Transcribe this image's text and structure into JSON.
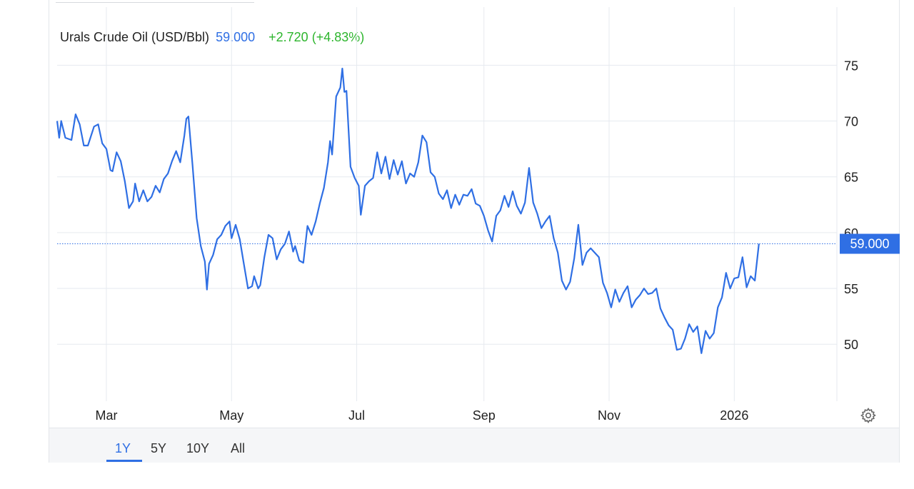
{
  "header": {
    "title": "Urals Crude Oil (USD/Bbl)",
    "price": "59.000",
    "change": "+2.720 (+4.83%)"
  },
  "colors": {
    "line": "#2f6fe4",
    "change_positive": "#2db52d",
    "grid": "#e6eaef"
  },
  "range_buttons": [
    {
      "label": "1Y",
      "active": true
    },
    {
      "label": "5Y",
      "active": false
    },
    {
      "label": "10Y",
      "active": false
    },
    {
      "label": "All",
      "active": false
    }
  ],
  "settings_icon": "gear-icon",
  "chart_data": {
    "type": "line",
    "title": "Urals Crude Oil (USD/Bbl)",
    "xlabel": "",
    "ylabel": "",
    "ylim": [
      44.9,
      80.2
    ],
    "yticks": [
      50,
      55,
      60,
      65,
      70,
      75
    ],
    "xticks": [
      {
        "label": "Mar",
        "date": "2025-03-01"
      },
      {
        "label": "May",
        "date": "2025-05-01"
      },
      {
        "label": "Jul",
        "date": "2025-07-01"
      },
      {
        "label": "Sep",
        "date": "2025-09-01"
      },
      {
        "label": "Nov",
        "date": "2025-11-01"
      },
      {
        "label": "2026",
        "date": "2026-01-01"
      }
    ],
    "x_range": [
      "2025-02-05",
      "2026-02-20"
    ],
    "grid": true,
    "current_value_label": "59.000",
    "current_value": 59.0,
    "series": [
      {
        "values": [
          [
            "2025-02-05",
            70.0
          ],
          [
            "2025-02-06",
            68.5
          ],
          [
            "2025-02-07",
            70.0
          ],
          [
            "2025-02-09",
            68.5
          ],
          [
            "2025-02-12",
            68.3
          ],
          [
            "2025-02-14",
            70.6
          ],
          [
            "2025-02-16",
            69.7
          ],
          [
            "2025-02-18",
            67.8
          ],
          [
            "2025-02-20",
            67.8
          ],
          [
            "2025-02-23",
            69.5
          ],
          [
            "2025-02-25",
            69.7
          ],
          [
            "2025-02-27",
            68.0
          ],
          [
            "2025-03-01",
            67.5
          ],
          [
            "2025-03-03",
            65.6
          ],
          [
            "2025-03-04",
            65.5
          ],
          [
            "2025-03-06",
            67.2
          ],
          [
            "2025-03-08",
            66.4
          ],
          [
            "2025-03-10",
            64.6
          ],
          [
            "2025-03-12",
            62.2
          ],
          [
            "2025-03-14",
            62.8
          ],
          [
            "2025-03-15",
            64.4
          ],
          [
            "2025-03-17",
            62.8
          ],
          [
            "2025-03-19",
            63.8
          ],
          [
            "2025-03-21",
            62.8
          ],
          [
            "2025-03-23",
            63.2
          ],
          [
            "2025-03-25",
            64.2
          ],
          [
            "2025-03-27",
            63.6
          ],
          [
            "2025-03-29",
            64.8
          ],
          [
            "2025-03-31",
            65.3
          ],
          [
            "2025-04-02",
            66.4
          ],
          [
            "2025-04-04",
            67.3
          ],
          [
            "2025-04-06",
            66.3
          ],
          [
            "2025-04-08",
            68.7
          ],
          [
            "2025-04-09",
            70.2
          ],
          [
            "2025-04-10",
            70.4
          ],
          [
            "2025-04-12",
            66.0
          ],
          [
            "2025-04-14",
            61.3
          ],
          [
            "2025-04-16",
            58.8
          ],
          [
            "2025-04-18",
            57.4
          ],
          [
            "2025-04-19",
            54.9
          ],
          [
            "2025-04-20",
            57.2
          ],
          [
            "2025-04-22",
            58.0
          ],
          [
            "2025-04-24",
            59.4
          ],
          [
            "2025-04-26",
            59.8
          ],
          [
            "2025-04-28",
            60.6
          ],
          [
            "2025-04-30",
            61.0
          ],
          [
            "2025-05-01",
            59.5
          ],
          [
            "2025-05-03",
            60.7
          ],
          [
            "2025-05-05",
            59.4
          ],
          [
            "2025-05-07",
            57.2
          ],
          [
            "2025-05-09",
            55.0
          ],
          [
            "2025-05-11",
            55.2
          ],
          [
            "2025-05-12",
            56.1
          ],
          [
            "2025-05-14",
            55.0
          ],
          [
            "2025-05-15",
            55.3
          ],
          [
            "2025-05-17",
            57.8
          ],
          [
            "2025-05-19",
            59.8
          ],
          [
            "2025-05-21",
            59.5
          ],
          [
            "2025-05-23",
            57.6
          ],
          [
            "2025-05-25",
            58.5
          ],
          [
            "2025-05-27",
            59.0
          ],
          [
            "2025-05-29",
            60.1
          ],
          [
            "2025-05-31",
            58.3
          ],
          [
            "2025-06-01",
            58.8
          ],
          [
            "2025-06-03",
            57.5
          ],
          [
            "2025-06-05",
            57.3
          ],
          [
            "2025-06-07",
            60.6
          ],
          [
            "2025-06-09",
            59.8
          ],
          [
            "2025-06-11",
            61.0
          ],
          [
            "2025-06-13",
            62.6
          ],
          [
            "2025-06-15",
            64.0
          ],
          [
            "2025-06-17",
            66.3
          ],
          [
            "2025-06-18",
            68.2
          ],
          [
            "2025-06-19",
            67.0
          ],
          [
            "2025-06-21",
            72.2
          ],
          [
            "2025-06-23",
            73.0
          ],
          [
            "2025-06-24",
            74.7
          ],
          [
            "2025-06-25",
            72.6
          ],
          [
            "2025-06-26",
            72.7
          ],
          [
            "2025-06-28",
            65.9
          ],
          [
            "2025-06-30",
            64.9
          ],
          [
            "2025-07-02",
            64.2
          ],
          [
            "2025-07-03",
            61.6
          ],
          [
            "2025-07-05",
            64.2
          ],
          [
            "2025-07-07",
            64.6
          ],
          [
            "2025-07-09",
            64.9
          ],
          [
            "2025-07-11",
            67.2
          ],
          [
            "2025-07-13",
            65.3
          ],
          [
            "2025-07-15",
            66.8
          ],
          [
            "2025-07-17",
            64.8
          ],
          [
            "2025-07-19",
            66.5
          ],
          [
            "2025-07-21",
            65.2
          ],
          [
            "2025-07-23",
            66.4
          ],
          [
            "2025-07-25",
            64.4
          ],
          [
            "2025-07-27",
            65.3
          ],
          [
            "2025-07-29",
            65.0
          ],
          [
            "2025-07-31",
            66.3
          ],
          [
            "2025-08-02",
            68.7
          ],
          [
            "2025-08-04",
            68.1
          ],
          [
            "2025-08-06",
            65.4
          ],
          [
            "2025-08-08",
            65.0
          ],
          [
            "2025-08-10",
            63.5
          ],
          [
            "2025-08-12",
            63.0
          ],
          [
            "2025-08-14",
            63.8
          ],
          [
            "2025-08-16",
            62.2
          ],
          [
            "2025-08-18",
            63.4
          ],
          [
            "2025-08-20",
            62.5
          ],
          [
            "2025-08-22",
            63.4
          ],
          [
            "2025-08-24",
            63.3
          ],
          [
            "2025-08-26",
            63.9
          ],
          [
            "2025-08-28",
            62.6
          ],
          [
            "2025-08-30",
            62.4
          ],
          [
            "2025-09-01",
            61.5
          ],
          [
            "2025-09-03",
            60.2
          ],
          [
            "2025-09-05",
            59.2
          ],
          [
            "2025-09-07",
            61.5
          ],
          [
            "2025-09-09",
            62.0
          ],
          [
            "2025-09-11",
            63.3
          ],
          [
            "2025-09-13",
            62.3
          ],
          [
            "2025-09-15",
            63.7
          ],
          [
            "2025-09-17",
            62.4
          ],
          [
            "2025-09-19",
            61.7
          ],
          [
            "2025-09-21",
            62.7
          ],
          [
            "2025-09-23",
            65.8
          ],
          [
            "2025-09-25",
            62.7
          ],
          [
            "2025-09-27",
            61.7
          ],
          [
            "2025-09-29",
            60.4
          ],
          [
            "2025-10-01",
            61.0
          ],
          [
            "2025-10-03",
            61.5
          ],
          [
            "2025-10-05",
            59.5
          ],
          [
            "2025-10-07",
            58.2
          ],
          [
            "2025-10-09",
            55.7
          ],
          [
            "2025-10-11",
            54.9
          ],
          [
            "2025-10-13",
            55.6
          ],
          [
            "2025-10-15",
            57.7
          ],
          [
            "2025-10-17",
            60.7
          ],
          [
            "2025-10-19",
            57.1
          ],
          [
            "2025-10-21",
            58.2
          ],
          [
            "2025-10-23",
            58.6
          ],
          [
            "2025-10-25",
            58.2
          ],
          [
            "2025-10-27",
            57.8
          ],
          [
            "2025-10-29",
            55.5
          ],
          [
            "2025-10-31",
            54.6
          ],
          [
            "2025-11-02",
            53.3
          ],
          [
            "2025-11-04",
            54.9
          ],
          [
            "2025-11-06",
            53.8
          ],
          [
            "2025-11-08",
            54.6
          ],
          [
            "2025-11-10",
            55.2
          ],
          [
            "2025-11-12",
            53.3
          ],
          [
            "2025-11-14",
            54.0
          ],
          [
            "2025-11-16",
            54.4
          ],
          [
            "2025-11-18",
            55.0
          ],
          [
            "2025-11-20",
            54.5
          ],
          [
            "2025-11-22",
            54.6
          ],
          [
            "2025-11-24",
            55.0
          ],
          [
            "2025-11-26",
            53.2
          ],
          [
            "2025-11-28",
            52.4
          ],
          [
            "2025-11-30",
            51.7
          ],
          [
            "2025-12-02",
            51.3
          ],
          [
            "2025-12-04",
            49.5
          ],
          [
            "2025-12-06",
            49.6
          ],
          [
            "2025-12-08",
            50.5
          ],
          [
            "2025-12-10",
            51.8
          ],
          [
            "2025-12-12",
            51.1
          ],
          [
            "2025-12-14",
            51.6
          ],
          [
            "2025-12-16",
            49.2
          ],
          [
            "2025-12-18",
            51.2
          ],
          [
            "2025-12-20",
            50.5
          ],
          [
            "2025-12-22",
            51.0
          ],
          [
            "2025-12-24",
            53.3
          ],
          [
            "2025-12-26",
            54.2
          ],
          [
            "2025-12-28",
            56.4
          ],
          [
            "2025-12-30",
            55.0
          ],
          [
            "2026-01-01",
            55.9
          ],
          [
            "2026-01-03",
            56.0
          ],
          [
            "2026-01-05",
            57.8
          ],
          [
            "2026-01-07",
            55.1
          ],
          [
            "2026-01-09",
            56.1
          ],
          [
            "2026-01-11",
            55.7
          ],
          [
            "2026-01-13",
            59.0
          ]
        ]
      }
    ]
  }
}
